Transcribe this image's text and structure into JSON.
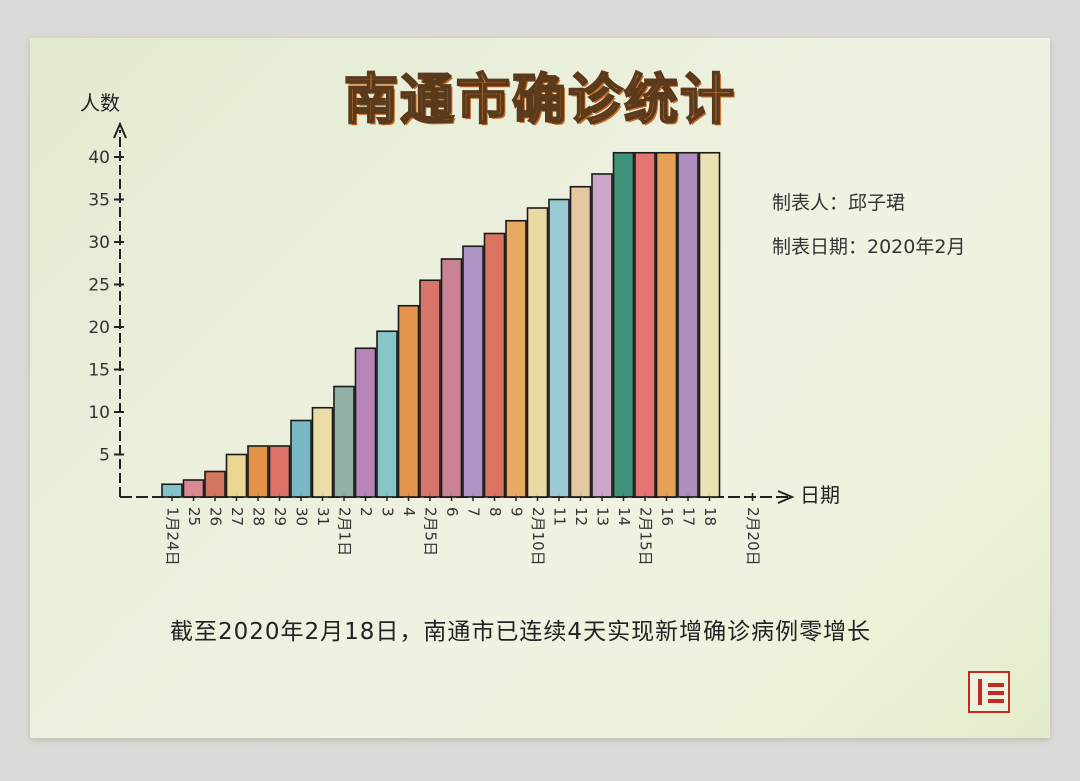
{
  "chart_data": {
    "type": "bar",
    "title": "南通市确诊统计",
    "ylabel": "人数",
    "xlabel": "日期",
    "ylim": [
      0,
      43
    ],
    "yticks": [
      5,
      10,
      15,
      20,
      25,
      30,
      35,
      40
    ],
    "categories": [
      "1月24日",
      "25",
      "26",
      "27",
      "28",
      "29",
      "30",
      "31",
      "2月1日",
      "2",
      "3",
      "4",
      "2月5日",
      "6",
      "7",
      "8",
      "9",
      "2月10日",
      "11",
      "12",
      "13",
      "14",
      "2月15日",
      "16",
      "17",
      "18",
      "",
      "2月20日"
    ],
    "values": [
      1.5,
      2,
      3,
      5,
      6,
      6,
      9,
      10.5,
      13,
      17.5,
      19.5,
      22.5,
      25.5,
      28,
      29.5,
      31,
      32.5,
      34,
      35,
      36.5,
      38,
      40.5,
      40.5,
      40.5,
      40.5,
      40.5,
      null,
      null
    ],
    "bar_colors": [
      "#7bbfc8",
      "#d9808a",
      "#cf6b52",
      "#e8d58c",
      "#e38a3a",
      "#d9675b",
      "#6fb3c2",
      "#e9dca1",
      "#8aaca0",
      "#b27cb3",
      "#7dc2c7",
      "#e38d3e",
      "#d86b5e",
      "#c57a8e",
      "#a98bc2",
      "#d86955",
      "#e8a356",
      "#e9d79c",
      "#93c7d2",
      "#e2c39a",
      "#c9a1c4",
      "#2f8a6e",
      "#e46a68",
      "#e69a4a",
      "#a886bb",
      "#ece0ac"
    ]
  },
  "meta": {
    "author": "制表人：邱子珺",
    "date": "制表日期：2020年2月"
  },
  "footnote": "截至2020年2月18日，南通市已连续4天实现新增确诊病例零增长",
  "colors": {
    "title": "#e88a3c",
    "seal": "#c42a24"
  }
}
